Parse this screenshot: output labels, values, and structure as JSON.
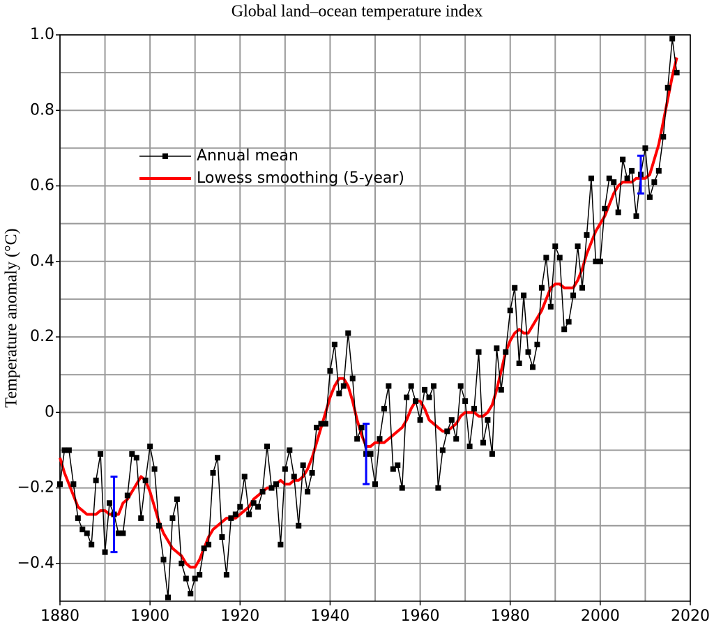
{
  "chart_data": {
    "type": "line",
    "title": "Global land–ocean temperature index",
    "y_label": "Temperature anomaly (°C)",
    "x": [
      1880,
      1881,
      1882,
      1883,
      1884,
      1885,
      1886,
      1887,
      1888,
      1889,
      1890,
      1891,
      1892,
      1893,
      1894,
      1895,
      1896,
      1897,
      1898,
      1899,
      1900,
      1901,
      1902,
      1903,
      1904,
      1905,
      1906,
      1907,
      1908,
      1909,
      1910,
      1911,
      1912,
      1913,
      1914,
      1915,
      1916,
      1917,
      1918,
      1919,
      1920,
      1921,
      1922,
      1923,
      1924,
      1925,
      1926,
      1927,
      1928,
      1929,
      1930,
      1931,
      1932,
      1933,
      1934,
      1935,
      1936,
      1937,
      1938,
      1939,
      1940,
      1941,
      1942,
      1943,
      1944,
      1945,
      1946,
      1947,
      1948,
      1949,
      1950,
      1951,
      1952,
      1953,
      1954,
      1955,
      1956,
      1957,
      1958,
      1959,
      1960,
      1961,
      1962,
      1963,
      1964,
      1965,
      1966,
      1967,
      1968,
      1969,
      1970,
      1971,
      1972,
      1973,
      1974,
      1975,
      1976,
      1977,
      1978,
      1979,
      1980,
      1981,
      1982,
      1983,
      1984,
      1985,
      1986,
      1987,
      1988,
      1989,
      1990,
      1991,
      1992,
      1993,
      1994,
      1995,
      1996,
      1997,
      1998,
      1999,
      2000,
      2001,
      2002,
      2003,
      2004,
      2005,
      2006,
      2007,
      2008,
      2009,
      2010,
      2011,
      2012,
      2013,
      2014,
      2015,
      2016,
      2017
    ],
    "series": [
      {
        "name": "Annual mean",
        "color": "#000000",
        "marker": "square",
        "values": [
          -0.19,
          -0.1,
          -0.1,
          -0.19,
          -0.28,
          -0.31,
          -0.32,
          -0.35,
          -0.18,
          -0.11,
          -0.37,
          -0.24,
          -0.27,
          -0.32,
          -0.32,
          -0.22,
          -0.11,
          -0.12,
          -0.28,
          -0.18,
          -0.09,
          -0.15,
          -0.3,
          -0.39,
          -0.49,
          -0.28,
          -0.23,
          -0.4,
          -0.44,
          -0.48,
          -0.44,
          -0.43,
          -0.36,
          -0.35,
          -0.16,
          -0.12,
          -0.33,
          -0.43,
          -0.28,
          -0.27,
          -0.25,
          -0.17,
          -0.27,
          -0.24,
          -0.25,
          -0.21,
          -0.09,
          -0.2,
          -0.19,
          -0.35,
          -0.15,
          -0.1,
          -0.17,
          -0.3,
          -0.14,
          -0.21,
          -0.16,
          -0.04,
          -0.03,
          -0.03,
          0.11,
          0.18,
          0.05,
          0.07,
          0.21,
          0.09,
          -0.07,
          -0.04,
          -0.11,
          -0.11,
          -0.19,
          -0.07,
          0.01,
          0.07,
          -0.15,
          -0.14,
          -0.2,
          0.04,
          0.07,
          0.03,
          -0.02,
          0.06,
          0.04,
          0.07,
          -0.2,
          -0.1,
          -0.05,
          -0.02,
          -0.07,
          0.07,
          0.03,
          -0.09,
          0.01,
          0.16,
          -0.08,
          -0.02,
          -0.11,
          0.17,
          0.06,
          0.16,
          0.27,
          0.33,
          0.13,
          0.31,
          0.16,
          0.12,
          0.18,
          0.33,
          0.41,
          0.28,
          0.44,
          0.41,
          0.22,
          0.24,
          0.31,
          0.44,
          0.33,
          0.47,
          0.62,
          0.4,
          0.4,
          0.54,
          0.62,
          0.61,
          0.53,
          0.67,
          0.62,
          0.64,
          0.52,
          0.63,
          0.7,
          0.57,
          0.61,
          0.64,
          0.73,
          0.86,
          0.99,
          0.9
        ]
      },
      {
        "name": "Lowess smoothing (5-year)",
        "color": "#ff0000",
        "marker": "none",
        "values": [
          -0.12,
          -0.16,
          -0.19,
          -0.22,
          -0.25,
          -0.26,
          -0.27,
          -0.27,
          -0.27,
          -0.26,
          -0.26,
          -0.27,
          -0.27,
          -0.27,
          -0.24,
          -0.23,
          -0.21,
          -0.19,
          -0.17,
          -0.18,
          -0.21,
          -0.25,
          -0.29,
          -0.32,
          -0.34,
          -0.36,
          -0.37,
          -0.38,
          -0.4,
          -0.41,
          -0.41,
          -0.39,
          -0.36,
          -0.33,
          -0.31,
          -0.3,
          -0.29,
          -0.28,
          -0.28,
          -0.28,
          -0.27,
          -0.26,
          -0.25,
          -0.23,
          -0.22,
          -0.21,
          -0.2,
          -0.2,
          -0.19,
          -0.18,
          -0.19,
          -0.19,
          -0.18,
          -0.18,
          -0.17,
          -0.15,
          -0.12,
          -0.08,
          -0.04,
          0.0,
          0.04,
          0.07,
          0.09,
          0.09,
          0.07,
          0.03,
          -0.02,
          -0.06,
          -0.09,
          -0.09,
          -0.08,
          -0.08,
          -0.08,
          -0.07,
          -0.06,
          -0.05,
          -0.04,
          -0.02,
          0.01,
          0.03,
          0.03,
          0.01,
          -0.02,
          -0.03,
          -0.04,
          -0.05,
          -0.05,
          -0.04,
          -0.03,
          -0.01,
          0.0,
          0.0,
          0.0,
          -0.01,
          -0.01,
          0.0,
          0.02,
          0.06,
          0.11,
          0.16,
          0.19,
          0.21,
          0.22,
          0.21,
          0.21,
          0.23,
          0.25,
          0.27,
          0.3,
          0.33,
          0.34,
          0.34,
          0.33,
          0.33,
          0.33,
          0.35,
          0.38,
          0.42,
          0.45,
          0.48,
          0.5,
          0.52,
          0.55,
          0.58,
          0.6,
          0.61,
          0.61,
          0.61,
          0.62,
          0.62,
          0.62,
          0.63,
          0.67,
          0.71,
          0.77,
          0.83,
          0.89,
          0.94
        ]
      }
    ],
    "error_bars": {
      "color": "#0000ff",
      "x": [
        1892,
        1948,
        2009
      ],
      "values": [
        -0.27,
        -0.11,
        0.63
      ],
      "errors": [
        0.1,
        0.08,
        0.05
      ]
    },
    "xlim": [
      1880,
      2020
    ],
    "xticks": [
      1880,
      1900,
      1920,
      1940,
      1960,
      1980,
      2000,
      2020
    ],
    "minor_xticks": [
      1890,
      1910,
      1930,
      1950,
      1970,
      1990,
      2010
    ],
    "ylim": [
      -0.5,
      1.0
    ],
    "yticks": [
      {
        "value": -0.4,
        "label": "−0.4"
      },
      {
        "value": -0.2,
        "label": "−0.2"
      },
      0,
      0.2,
      0.4,
      0.6,
      0.8,
      {
        "value": 1.0,
        "label": "1.0"
      }
    ],
    "minor_yticks": [
      -0.3,
      -0.1,
      0.1,
      0.3,
      0.5,
      0.7,
      0.9
    ],
    "grid": true,
    "legend": "upper left"
  }
}
